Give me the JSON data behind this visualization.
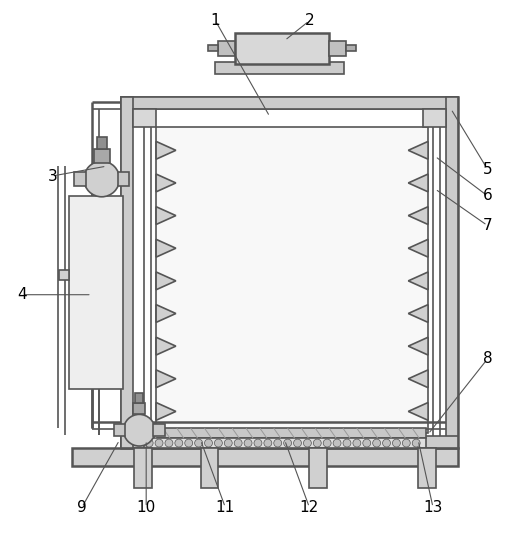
{
  "bg_color": "#ffffff",
  "lc": "#555555",
  "lc2": "#777777",
  "label_fontsize": 11
}
